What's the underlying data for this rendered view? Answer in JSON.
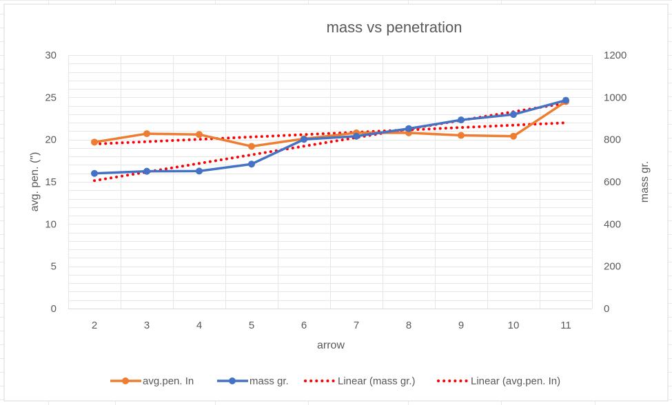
{
  "chart_data": {
    "type": "line",
    "title": "mass vs penetration",
    "xlabel": "arrow",
    "ylabel_left": "avg. pen. (\")",
    "ylabel_right": "mass gr.",
    "categories": [
      "2",
      "3",
      "4",
      "5",
      "6",
      "7",
      "8",
      "9",
      "10",
      "11"
    ],
    "y_left": {
      "range": [
        0,
        30
      ],
      "ticks": [
        "0",
        "5",
        "10",
        "15",
        "20",
        "25",
        "30"
      ]
    },
    "y_right": {
      "range": [
        0,
        1200
      ],
      "ticks": [
        "0",
        "200",
        "400",
        "600",
        "800",
        "1000",
        "1200"
      ]
    },
    "series": [
      {
        "name": "avg.pen. In",
        "axis": "left",
        "color": "#ED7D31",
        "values": [
          19.7,
          20.7,
          20.6,
          19.2,
          20.1,
          20.8,
          20.8,
          20.5,
          20.4,
          24.5
        ]
      },
      {
        "name": "mass gr.",
        "axis": "right",
        "color": "#4472C4",
        "values": [
          640,
          650,
          651,
          684,
          801,
          816,
          852,
          893,
          919,
          986
        ]
      }
    ],
    "trendlines": [
      {
        "name": "Linear (mass gr.)",
        "of": "mass gr.",
        "axis": "right",
        "color": "#FF0000",
        "style": "dotted"
      },
      {
        "name": "Linear (avg.pen. In)",
        "of": "avg.pen. In",
        "axis": "left",
        "color": "#FF0000",
        "style": "dotted"
      }
    ],
    "grid": true,
    "legend": "bottom"
  }
}
